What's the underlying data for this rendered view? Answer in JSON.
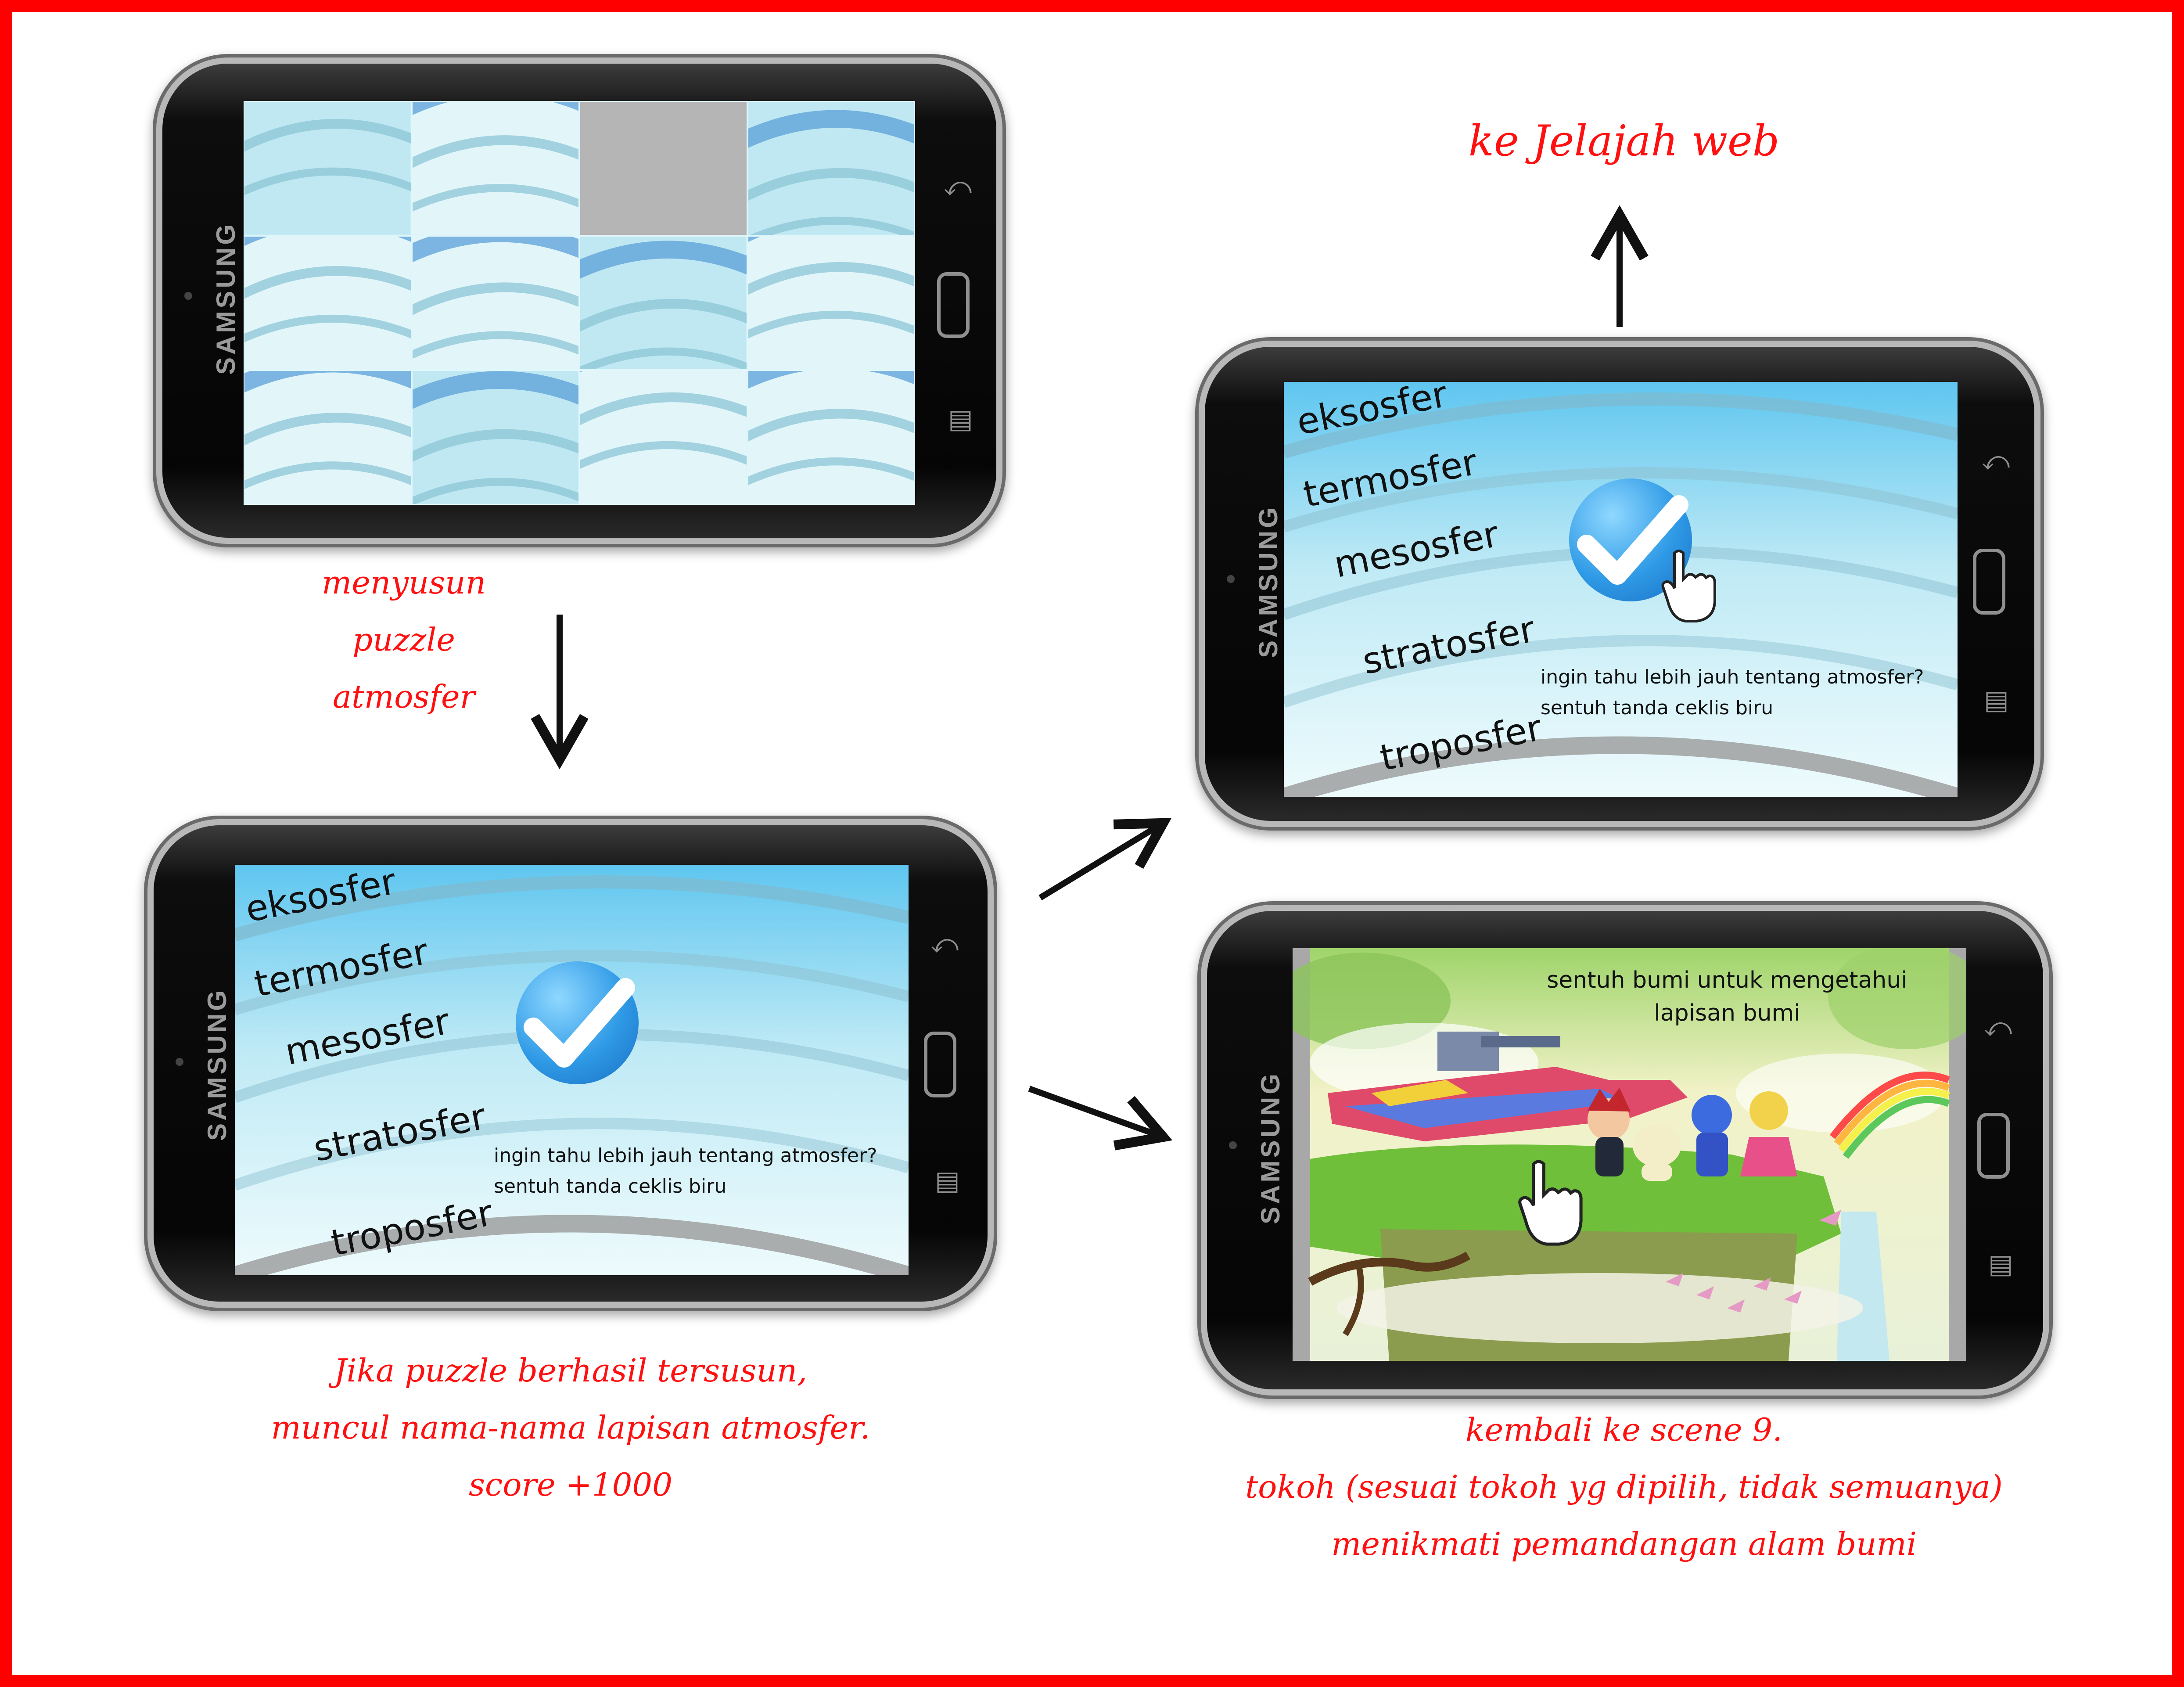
{
  "phone_brand": "SAMSUNG",
  "puzzle": {
    "caption_lines": [
      "menyusun",
      "puzzle",
      "atmosfer"
    ],
    "grid": {
      "columns": 4,
      "rows": 3,
      "empty_tile": 2
    }
  },
  "result": {
    "layers": [
      "eksosfer",
      "termosfer",
      "mesosfer",
      "stratosfer",
      "troposfer"
    ],
    "info_line1": "ingin tahu lebih jauh tentang atmosfer?",
    "info_line2": "sentuh tanda ceklis biru",
    "caption_lines": [
      "Jika puzzle berhasil tersusun,",
      "muncul nama-nama lapisan atmosfer.",
      "score +1000"
    ]
  },
  "web": {
    "caption": "ke Jelajah web",
    "layers": [
      "eksosfer",
      "termosfer",
      "mesosfer",
      "stratosfer",
      "troposfer"
    ],
    "info_line1": "ingin tahu lebih jauh tentang atmosfer?",
    "info_line2": "sentuh tanda ceklis biru"
  },
  "scene9": {
    "text_line1": "sentuh bumi untuk mengetahui",
    "text_line2": "lapisan bumi",
    "caption_lines": [
      "kembali ke scene 9.",
      "tokoh (sesuai tokoh yg dipilih, tidak semuanya)",
      "menikmati pemandangan alam bumi"
    ]
  },
  "colors": {
    "caption": "#ff1010",
    "frame": "#ff0000",
    "check": "#2f9ae6"
  }
}
